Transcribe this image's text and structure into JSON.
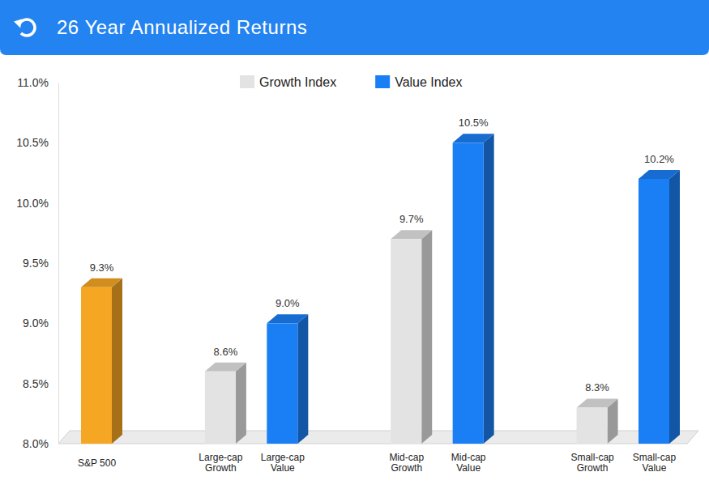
{
  "chart_data": {
    "type": "bar",
    "title": "26 Year Annualized Returns",
    "categories": [
      "S&P 500",
      "Large-cap\nGrowth",
      "Large-cap\nValue",
      "Mid-cap\nGrowth",
      "Mid-cap\nValue",
      "Small-cap\nGrowth",
      "Small-cap\nValue"
    ],
    "values": [
      9.3,
      8.6,
      9.0,
      9.7,
      10.5,
      8.3,
      10.2
    ],
    "value_labels": [
      "9.3%",
      "8.6%",
      "9.0%",
      "9.7%",
      "10.5%",
      "8.3%",
      "10.2%"
    ],
    "colors": [
      "#f5a623",
      "#e3e3e3",
      "#1a7ff5",
      "#e3e3e3",
      "#1a7ff5",
      "#e3e3e3",
      "#1a7ff5"
    ],
    "legend_entries": [
      {
        "name": "Growth Index",
        "color": "#e3e3e3"
      },
      {
        "name": "Value Index",
        "color": "#1a7ff5"
      }
    ],
    "ylim": [
      8.0,
      11.0
    ],
    "yticks": [
      {
        "value": 8.0,
        "label": "8.0%"
      },
      {
        "value": 8.5,
        "label": "8.5%"
      },
      {
        "value": 9.0,
        "label": "9.0%"
      },
      {
        "value": 9.5,
        "label": "9.5%"
      },
      {
        "value": 10.0,
        "label": "10.0%"
      },
      {
        "value": 10.5,
        "label": "10.5%"
      },
      {
        "value": 11.0,
        "label": "11.0%"
      }
    ],
    "grid": false,
    "legend": "top",
    "data_labels": true
  }
}
